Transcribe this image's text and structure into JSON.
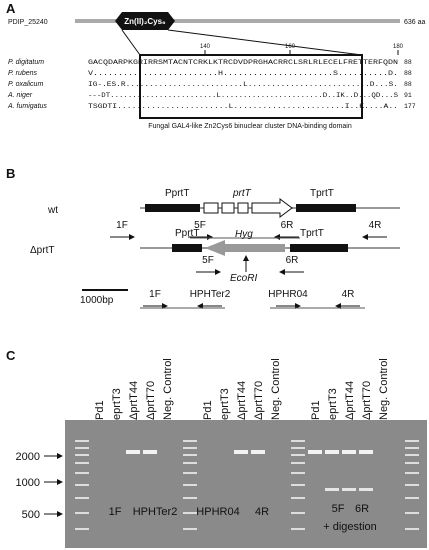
{
  "panel_a": {
    "label": "A",
    "protein": "PDIP_25240",
    "domain": "Zn(II)₂Cys₆",
    "length": "636 aa",
    "ruler": [
      "140",
      "160",
      "180"
    ],
    "rows": [
      {
        "species": "P. digitatum",
        "sequence": "GACQDARPKGRIRRSMTACNTCRKLKTRCDVDPRGHACRRCLSRLRLECELFRETTERFQDN",
        "end": "88"
      },
      {
        "species": "P. rubens",
        "sequence": "V.........................H......................S..........D.",
        "end": "88"
      },
      {
        "species": "P. oxalicum",
        "sequence": "IG-.ES.R.........................L..........................D...S.",
        "end": "88"
      },
      {
        "species": "A. niger",
        "sequence": "---DT........................L.......................D..IK..D...QD...S",
        "end": "91"
      },
      {
        "species": "A. fumigatus",
        "sequence": "TSGDTI.......................L.......................I..K....A..",
        "end": "177"
      }
    ],
    "caption": "Fungal GAL4-like Zn2Cys6 binuclear cluster DNA-binding domain"
  },
  "panel_b": {
    "label": "B",
    "wt": {
      "name": "wt",
      "promoter": "PprtT",
      "gene": "prtT",
      "terminator": "TprtT",
      "primers": [
        "1F",
        "5F",
        "6R",
        "4R"
      ]
    },
    "mutant": {
      "name": "ΔprtT",
      "promoter": "PprtT",
      "marker": "Hyg",
      "terminator": "TprtT",
      "site": "EcoRI",
      "primers": [
        "5F",
        "6R",
        "1F",
        "HPHTer2",
        "HPHR04",
        "4R"
      ]
    },
    "scale": "1000bp"
  },
  "panel_c": {
    "label": "C",
    "lane_groups": [
      [
        "Pd1",
        "eprtT3",
        "ΔprtT44",
        "ΔprtT70",
        "Neg. Control"
      ],
      [
        "Pd1",
        "eprtT3",
        "ΔprtT44",
        "ΔprtT70",
        "Neg. Control"
      ],
      [
        "Pd1",
        "eprtT3",
        "ΔprtT44",
        "ΔprtT70",
        "Neg. Control"
      ]
    ],
    "markers": [
      "2000",
      "1000",
      "500"
    ],
    "group_labels": [
      [
        "1F",
        "HPHTer2"
      ],
      [
        "HPHR04",
        "4R"
      ],
      [
        "5F",
        "6R",
        "+ digestion"
      ]
    ]
  }
}
